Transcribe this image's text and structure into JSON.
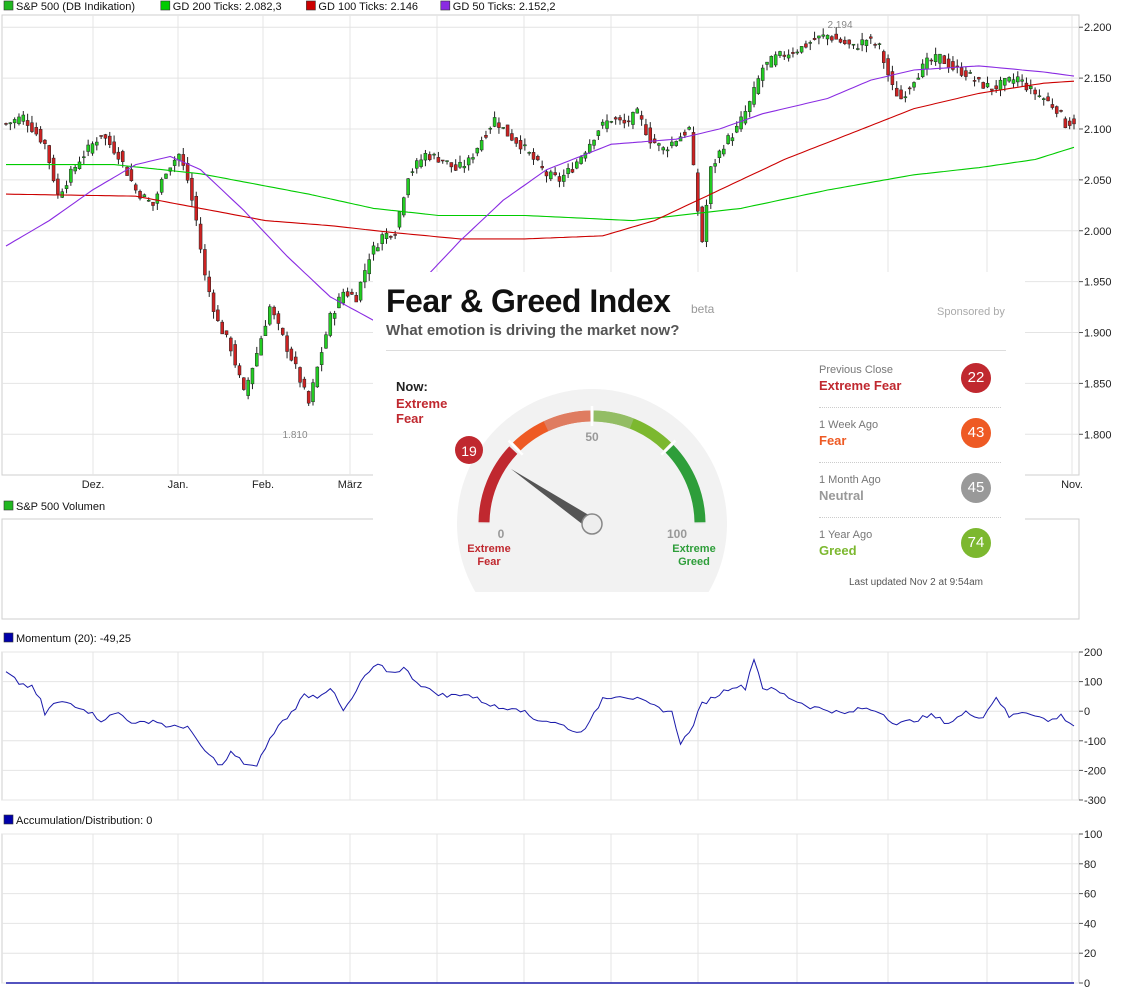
{
  "chart_data": [
    {
      "type": "candlestick",
      "title": "",
      "legend": [
        {
          "name": "S&P 500 (DB Indikation)",
          "color": "#22b822"
        },
        {
          "name": "GD 200 Ticks: 2.082,3",
          "color": "#00cc00"
        },
        {
          "name": "GD 100 Ticks: 2.146",
          "color": "#cc0000"
        },
        {
          "name": "GD 50 Ticks: 2.152,2",
          "color": "#8a2be2"
        }
      ],
      "x_tick_labels": [
        "Dez.",
        "Jan.",
        "Feb.",
        "März",
        "Nov."
      ],
      "y_tick_labels": [
        "2.200",
        "2.150",
        "2.100",
        "2.050",
        "2.000",
        "1.950",
        "1.900",
        "1.850",
        "1.800"
      ],
      "ylim": [
        1760,
        2212
      ],
      "annotations": [
        "2.194",
        "1.810"
      ],
      "series": [
        {
          "name": "S&P 500 (DB Indikation)",
          "close_keypoints": [
            [
              0,
              2105
            ],
            [
              4,
              2112
            ],
            [
              9,
              2085
            ],
            [
              12,
              2035
            ],
            [
              17,
              2070
            ],
            [
              22,
              2095
            ],
            [
              26,
              2075
            ],
            [
              30,
              2040
            ],
            [
              34,
              2025
            ],
            [
              37,
              2060
            ],
            [
              40,
              2075
            ],
            [
              42,
              2050
            ],
            [
              44,
              2010
            ],
            [
              46,
              1955
            ],
            [
              49,
              1910
            ],
            [
              52,
              1885
            ],
            [
              55,
              1840
            ],
            [
              58,
              1880
            ],
            [
              61,
              1925
            ],
            [
              64,
              1895
            ],
            [
              67,
              1865
            ],
            [
              70,
              1830
            ],
            [
              72,
              1865
            ],
            [
              75,
              1915
            ],
            [
              78,
              1940
            ],
            [
              81,
              1935
            ],
            [
              84,
              1975
            ],
            [
              87,
              1995
            ],
            [
              90,
              2000
            ],
            [
              93,
              2055
            ],
            [
              97,
              2075
            ],
            [
              101,
              2070
            ],
            [
              104,
              2060
            ],
            [
              107,
              2068
            ],
            [
              110,
              2090
            ],
            [
              113,
              2110
            ],
            [
              116,
              2095
            ],
            [
              119,
              2085
            ],
            [
              122,
              2070
            ],
            [
              125,
              2055
            ],
            [
              128,
              2050
            ],
            [
              131,
              2062
            ],
            [
              134,
              2080
            ],
            [
              137,
              2100
            ],
            [
              140,
              2110
            ],
            [
              143,
              2105
            ],
            [
              146,
              2115
            ],
            [
              149,
              2090
            ],
            [
              152,
              2080
            ],
            [
              155,
              2090
            ],
            [
              158,
              2100
            ],
            [
              160,
              2020
            ],
            [
              161,
              1990
            ],
            [
              163,
              2060
            ],
            [
              166,
              2085
            ],
            [
              169,
              2100
            ],
            [
              172,
              2125
            ],
            [
              175,
              2160
            ],
            [
              178,
              2170
            ],
            [
              181,
              2175
            ],
            [
              184,
              2180
            ],
            [
              187,
              2188
            ],
            [
              190,
              2192
            ],
            [
              193,
              2186
            ],
            [
              196,
              2180
            ],
            [
              199,
              2188
            ],
            [
              202,
              2180
            ],
            [
              205,
              2140
            ],
            [
              207,
              2130
            ],
            [
              210,
              2150
            ],
            [
              213,
              2165
            ],
            [
              216,
              2170
            ],
            [
              219,
              2160
            ],
            [
              222,
              2155
            ],
            [
              225,
              2145
            ],
            [
              228,
              2140
            ],
            [
              231,
              2145
            ],
            [
              234,
              2150
            ],
            [
              237,
              2138
            ],
            [
              240,
              2130
            ],
            [
              243,
              2120
            ],
            [
              245,
              2105
            ],
            [
              247,
              2108
            ]
          ]
        },
        {
          "name": "GD 200 Ticks",
          "keypoints": [
            [
              0,
              2065
            ],
            [
              25,
              2065
            ],
            [
              45,
              2056
            ],
            [
              55,
              2048
            ],
            [
              70,
              2036
            ],
            [
              85,
              2022
            ],
            [
              100,
              2015
            ],
            [
              120,
              2015
            ],
            [
              145,
              2010
            ],
            [
              170,
              2022
            ],
            [
              190,
              2040
            ],
            [
              210,
              2055
            ],
            [
              225,
              2062
            ],
            [
              238,
              2070
            ],
            [
              247,
              2082
            ]
          ]
        },
        {
          "name": "GD 100 Ticks",
          "keypoints": [
            [
              0,
              2036
            ],
            [
              30,
              2034
            ],
            [
              45,
              2022
            ],
            [
              60,
              2010
            ],
            [
              75,
              2005
            ],
            [
              90,
              1998
            ],
            [
              105,
              1992
            ],
            [
              120,
              1992
            ],
            [
              138,
              1995
            ],
            [
              150,
              2010
            ],
            [
              165,
              2040
            ],
            [
              180,
              2070
            ],
            [
              195,
              2095
            ],
            [
              210,
              2120
            ],
            [
              225,
              2135
            ],
            [
              240,
              2145
            ],
            [
              247,
              2147
            ]
          ]
        },
        {
          "name": "GD 50 Ticks",
          "keypoints": [
            [
              0,
              1985
            ],
            [
              10,
              2010
            ],
            [
              20,
              2040
            ],
            [
              30,
              2065
            ],
            [
              38,
              2073
            ],
            [
              45,
              2060
            ],
            [
              55,
              2020
            ],
            [
              65,
              1975
            ],
            [
              75,
              1935
            ],
            [
              85,
              1912
            ],
            [
              95,
              1945
            ],
            [
              105,
              1990
            ],
            [
              115,
              2030
            ],
            [
              125,
              2060
            ],
            [
              140,
              2085
            ],
            [
              155,
              2090
            ],
            [
              165,
              2100
            ],
            [
              175,
              2115
            ],
            [
              190,
              2130
            ],
            [
              200,
              2148
            ],
            [
              210,
              2158
            ],
            [
              225,
              2162
            ],
            [
              240,
              2156
            ],
            [
              247,
              2152
            ]
          ]
        }
      ]
    },
    {
      "type": "bar",
      "title": "",
      "legend": [
        {
          "name": "S&P 500 Volumen",
          "color": "#22b822"
        }
      ],
      "values": []
    },
    {
      "type": "line",
      "title": "",
      "legend": [
        {
          "name": "Momentum (20): -49,25",
          "color": "#0000aa"
        }
      ],
      "y_tick_labels": [
        "200",
        "100",
        "0",
        "-100",
        "-200",
        "-300"
      ],
      "ylim": [
        -300,
        200
      ],
      "series": [
        {
          "name": "Momentum (20)",
          "keypoints": [
            [
              0,
              130
            ],
            [
              3,
              95
            ],
            [
              6,
              80
            ],
            [
              8,
              35
            ],
            [
              9,
              -10
            ],
            [
              11,
              25
            ],
            [
              14,
              30
            ],
            [
              18,
              10
            ],
            [
              22,
              -30
            ],
            [
              26,
              -5
            ],
            [
              30,
              -45
            ],
            [
              34,
              -30
            ],
            [
              38,
              -55
            ],
            [
              42,
              -50
            ],
            [
              44,
              -100
            ],
            [
              47,
              -150
            ],
            [
              50,
              -185
            ],
            [
              52,
              -140
            ],
            [
              55,
              -175
            ],
            [
              58,
              -190
            ],
            [
              60,
              -120
            ],
            [
              63,
              -50
            ],
            [
              66,
              -5
            ],
            [
              69,
              55
            ],
            [
              72,
              50
            ],
            [
              75,
              80
            ],
            [
              78,
              0
            ],
            [
              80,
              40
            ],
            [
              83,
              120
            ],
            [
              86,
              155
            ],
            [
              89,
              130
            ],
            [
              92,
              145
            ],
            [
              95,
              100
            ],
            [
              98,
              70
            ],
            [
              102,
              50
            ],
            [
              106,
              60
            ],
            [
              110,
              35
            ],
            [
              114,
              10
            ],
            [
              118,
              15
            ],
            [
              122,
              -25
            ],
            [
              126,
              -35
            ],
            [
              130,
              -55
            ],
            [
              132,
              -75
            ],
            [
              135,
              -40
            ],
            [
              138,
              45
            ],
            [
              142,
              55
            ],
            [
              146,
              40
            ],
            [
              150,
              15
            ],
            [
              154,
              -5
            ],
            [
              156,
              -105
            ],
            [
              158,
              -75
            ],
            [
              161,
              25
            ],
            [
              164,
              50
            ],
            [
              168,
              85
            ],
            [
              171,
              80
            ],
            [
              173,
              180
            ],
            [
              175,
              80
            ],
            [
              178,
              70
            ],
            [
              182,
              40
            ],
            [
              186,
              15
            ],
            [
              190,
              5
            ],
            [
              194,
              -10
            ],
            [
              198,
              10
            ],
            [
              202,
              0
            ],
            [
              206,
              -45
            ],
            [
              210,
              -30
            ],
            [
              214,
              -15
            ],
            [
              218,
              -40
            ],
            [
              222,
              -5
            ],
            [
              226,
              -20
            ],
            [
              229,
              50
            ],
            [
              232,
              -20
            ],
            [
              235,
              0
            ],
            [
              238,
              -10
            ],
            [
              241,
              -35
            ],
            [
              244,
              -15
            ],
            [
              247,
              -49
            ]
          ]
        }
      ]
    },
    {
      "type": "line",
      "title": "",
      "legend": [
        {
          "name": "Accumulation/Distribution: 0",
          "color": "#0000aa"
        }
      ],
      "y_tick_labels": [
        "100",
        "80",
        "60",
        "40",
        "20",
        "0"
      ],
      "ylim": [
        0,
        100
      ],
      "series": [
        {
          "name": "Accumulation/Distribution",
          "keypoints": [
            [
              0,
              0
            ],
            [
              247,
              0
            ]
          ]
        }
      ]
    }
  ],
  "fear_greed": {
    "title": "Fear & Greed Index",
    "beta": "beta",
    "sponsored": "Sponsored by",
    "subtitle": "What emotion is driving the market now?",
    "now_label": "Now:",
    "now_value": "Extreme Fear",
    "now_score": 19,
    "gauge_score_label": "19",
    "scale_min": "0",
    "scale_mid": "50",
    "scale_max": "100",
    "end_left": "Extreme Fear",
    "end_right": "Extreme Greed",
    "history": [
      {
        "label": "Previous Close",
        "value": "Extreme Fear",
        "score": "22",
        "color": "#c0282f"
      },
      {
        "label": "1 Week Ago",
        "value": "Fear",
        "score": "43",
        "color": "#ee5a24"
      },
      {
        "label": "1 Month Ago",
        "value": "Neutral",
        "score": "45",
        "color": "#999999"
      },
      {
        "label": "1 Year Ago",
        "value": "Greed",
        "score": "74",
        "color": "#7cb82f"
      }
    ],
    "updated": "Last updated Nov 2 at 9:54am",
    "colors": {
      "extreme_fear": "#c0282f",
      "fear": "#ee5a24",
      "neutral": "#999999",
      "greed": "#7cb82f",
      "extreme_greed": "#2e9e3a"
    }
  }
}
